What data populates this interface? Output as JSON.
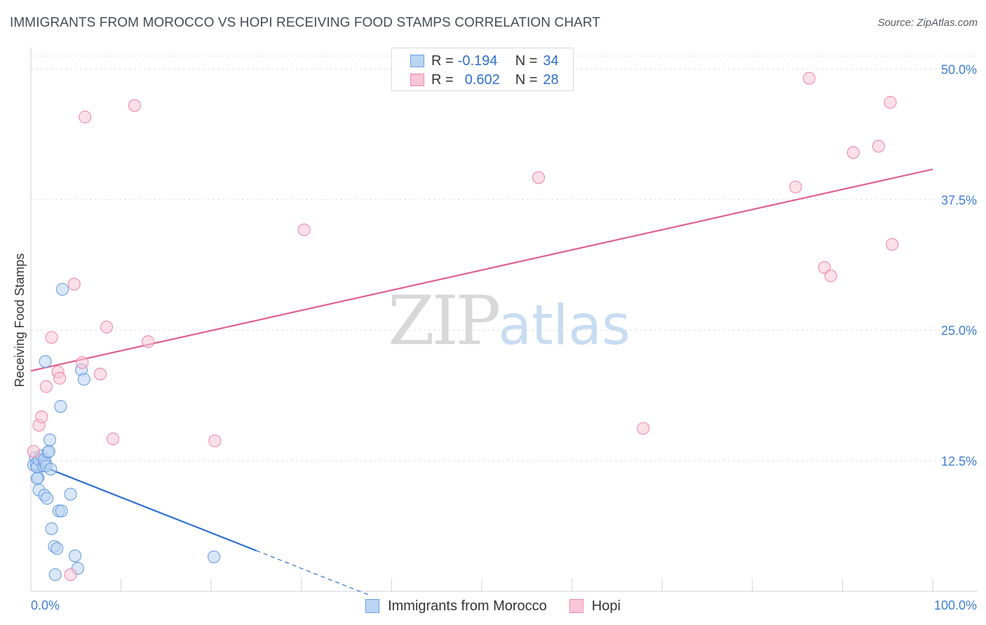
{
  "title": "IMMIGRANTS FROM MOROCCO VS HOPI RECEIVING FOOD STAMPS CORRELATION CHART",
  "source": "Source: ZipAtlas.com",
  "watermark": {
    "zip": "ZIP",
    "atlas": "atlas"
  },
  "legend": {
    "rows": [
      {
        "r_label": "R =",
        "r_value": "-0.194",
        "n_label": "N =",
        "n_value": "34"
      },
      {
        "r_label": "R =",
        "r_value": "0.602",
        "n_label": "N =",
        "n_value": "28"
      }
    ]
  },
  "chart_data": {
    "type": "scatter",
    "title": "IMMIGRANTS FROM MOROCCO VS HOPI RECEIVING FOOD STAMPS CORRELATION CHART",
    "xlabel": "",
    "ylabel": "Receiving Food Stamps",
    "xlim": [
      0,
      100
    ],
    "ylim": [
      0,
      51.5
    ],
    "x_tick_labels": [
      "0.0%",
      "100.0%"
    ],
    "y_ticks": [
      12.5,
      25.0,
      37.5,
      50.0
    ],
    "y_tick_labels": [
      "12.5%",
      "25.0%",
      "37.5%",
      "50.0%"
    ],
    "grid": "horizontal dashed",
    "legend_position": "bottom",
    "series": [
      {
        "name": "Immigrants from Morocco",
        "color": "#6b9fe0",
        "fill": "#bcd4f4",
        "line_color": "#2d6fce",
        "points": [
          [
            0.3,
            12.1
          ],
          [
            0.5,
            12.8
          ],
          [
            0.6,
            12.2
          ],
          [
            0.7,
            11.9
          ],
          [
            0.8,
            10.9
          ],
          [
            0.9,
            12.6
          ],
          [
            0.7,
            10.8
          ],
          [
            0.9,
            9.7
          ],
          [
            1.2,
            13.0
          ],
          [
            1.4,
            12.0
          ],
          [
            1.5,
            9.2
          ],
          [
            1.6,
            12.3
          ],
          [
            1.5,
            12.6
          ],
          [
            1.7,
            12.0
          ],
          [
            1.8,
            8.9
          ],
          [
            1.9,
            13.3
          ],
          [
            2.0,
            13.4
          ],
          [
            2.1,
            14.5
          ],
          [
            2.2,
            11.7
          ],
          [
            2.3,
            6.0
          ],
          [
            2.6,
            4.3
          ],
          [
            2.7,
            1.6
          ],
          [
            2.9,
            4.1
          ],
          [
            3.1,
            7.7
          ],
          [
            3.3,
            17.7
          ],
          [
            3.4,
            7.7
          ],
          [
            3.5,
            28.9
          ],
          [
            1.6,
            22.0
          ],
          [
            4.4,
            9.3
          ],
          [
            4.9,
            3.4
          ],
          [
            5.2,
            2.2
          ],
          [
            5.6,
            21.2
          ],
          [
            5.9,
            20.3
          ],
          [
            20.3,
            3.3
          ]
        ],
        "trend": {
          "x": [
            0,
            25
          ],
          "y": [
            12.4,
            3.9
          ],
          "dashed_extension_to_x": 37.5
        }
      },
      {
        "name": "Hopi",
        "color": "#f08aaa",
        "fill": "#f9c6d6",
        "line_color": "#e0608a",
        "points": [
          [
            0.3,
            13.4
          ],
          [
            0.9,
            15.9
          ],
          [
            1.2,
            16.7
          ],
          [
            1.7,
            19.6
          ],
          [
            2.3,
            24.3
          ],
          [
            3.0,
            21.0
          ],
          [
            3.2,
            20.4
          ],
          [
            4.4,
            1.6
          ],
          [
            4.8,
            29.4
          ],
          [
            5.7,
            21.9
          ],
          [
            6.0,
            45.4
          ],
          [
            7.7,
            20.8
          ],
          [
            8.4,
            25.3
          ],
          [
            9.1,
            14.6
          ],
          [
            11.5,
            46.5
          ],
          [
            13.0,
            23.9
          ],
          [
            20.4,
            14.4
          ],
          [
            30.3,
            34.6
          ],
          [
            56.3,
            39.6
          ],
          [
            67.9,
            15.6
          ],
          [
            84.8,
            38.7
          ],
          [
            86.3,
            49.1
          ],
          [
            88.0,
            31.0
          ],
          [
            88.7,
            30.2
          ],
          [
            91.2,
            42.0
          ],
          [
            94.0,
            42.6
          ],
          [
            95.3,
            46.8
          ],
          [
            95.5,
            33.2
          ]
        ],
        "trend": {
          "x": [
            0,
            100
          ],
          "y": [
            21.1,
            40.4
          ]
        }
      }
    ]
  }
}
